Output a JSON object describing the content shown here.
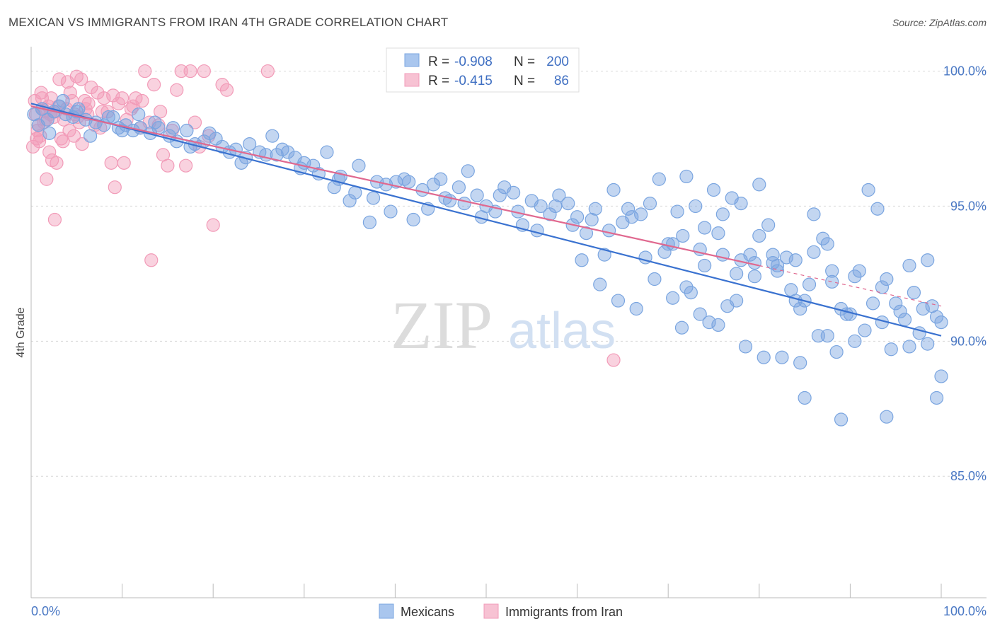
{
  "header": {
    "title": "MEXICAN VS IMMIGRANTS FROM IRAN 4TH GRADE CORRELATION CHART",
    "source": "Source: ZipAtlas.com"
  },
  "watermark": {
    "zip": "ZIP",
    "atlas": "atlas"
  },
  "legend": {
    "rows": [
      {
        "r_label": "R =",
        "r_value": "-0.908",
        "n_label": "N =",
        "n_value": "200",
        "color": "#a9c6ee"
      },
      {
        "r_label": "R =",
        "r_value": "-0.415",
        "n_label": "N =",
        "n_value": "86",
        "color": "#f5b3c8"
      }
    ]
  },
  "bottom_legend": {
    "items": [
      "Mexicans",
      "Immigrants from Iran"
    ]
  },
  "chart_data": {
    "type": "scatter",
    "xlabel": "",
    "ylabel": "4th Grade",
    "xlim": [
      0,
      100
    ],
    "ylim": [
      80.5,
      100.8
    ],
    "x_tick_labels": [
      "0.0%",
      "100.0%"
    ],
    "y_ticks": [
      85,
      90,
      95,
      100
    ],
    "y_tick_labels": [
      "85.0%",
      "90.0%",
      "95.0%",
      "100.0%"
    ],
    "grid": true,
    "colors": {
      "blue": "#7aa5e0",
      "blue_line": "#3a72d0",
      "pink": "#f29bb8",
      "pink_line": "#e0688f"
    },
    "series": [
      {
        "name": "Mexicans",
        "trend": {
          "x0": 0,
          "y0": 98.8,
          "x1": 100,
          "y1": 90.2
        },
        "points": [
          [
            0.3,
            98.4
          ],
          [
            1.2,
            98.6
          ],
          [
            1.8,
            98.2
          ],
          [
            2.5,
            98.5
          ],
          [
            3.1,
            98.7
          ],
          [
            3.8,
            98.4
          ],
          [
            4.6,
            98.3
          ],
          [
            5.2,
            98.6
          ],
          [
            6.0,
            98.2
          ],
          [
            7.1,
            98.1
          ],
          [
            8.0,
            98.0
          ],
          [
            9.0,
            98.3
          ],
          [
            9.6,
            97.9
          ],
          [
            10.4,
            98.0
          ],
          [
            11.2,
            97.8
          ],
          [
            12.0,
            97.9
          ],
          [
            13.1,
            97.7
          ],
          [
            14.0,
            97.9
          ],
          [
            15.2,
            97.6
          ],
          [
            16.0,
            97.4
          ],
          [
            17.1,
            97.8
          ],
          [
            18.0,
            97.3
          ],
          [
            19.0,
            97.4
          ],
          [
            20.3,
            97.5
          ],
          [
            21.0,
            97.2
          ],
          [
            22.5,
            97.1
          ],
          [
            23.1,
            96.6
          ],
          [
            24.0,
            97.3
          ],
          [
            25.1,
            97.0
          ],
          [
            26.5,
            97.6
          ],
          [
            27.0,
            96.9
          ],
          [
            28.2,
            97.0
          ],
          [
            29.0,
            96.8
          ],
          [
            30.0,
            96.6
          ],
          [
            31.0,
            96.5
          ],
          [
            32.5,
            97.0
          ],
          [
            33.3,
            95.7
          ],
          [
            34.0,
            96.1
          ],
          [
            35.0,
            95.2
          ],
          [
            36.0,
            96.5
          ],
          [
            37.2,
            94.4
          ],
          [
            38.0,
            95.9
          ],
          [
            39.0,
            95.8
          ],
          [
            40.1,
            95.9
          ],
          [
            41.0,
            96.0
          ],
          [
            42.0,
            94.5
          ],
          [
            43.0,
            95.6
          ],
          [
            44.2,
            95.8
          ],
          [
            45.0,
            96.0
          ],
          [
            46.0,
            95.2
          ],
          [
            47.0,
            95.7
          ],
          [
            48.0,
            96.3
          ],
          [
            49.0,
            95.4
          ],
          [
            50.0,
            95.0
          ],
          [
            51.0,
            94.8
          ],
          [
            52.0,
            95.7
          ],
          [
            53.0,
            95.5
          ],
          [
            54.0,
            94.3
          ],
          [
            55.0,
            95.2
          ],
          [
            56.0,
            95.0
          ],
          [
            57.0,
            94.7
          ],
          [
            58.0,
            95.4
          ],
          [
            59.0,
            95.1
          ],
          [
            60.0,
            94.6
          ],
          [
            61.0,
            94.0
          ],
          [
            62.0,
            94.9
          ],
          [
            63.0,
            93.2
          ],
          [
            64.0,
            95.6
          ],
          [
            65.0,
            94.4
          ],
          [
            66.0,
            94.6
          ],
          [
            67.0,
            94.7
          ],
          [
            68.0,
            95.1
          ],
          [
            69.0,
            96.0
          ],
          [
            70.0,
            93.6
          ],
          [
            71.0,
            94.8
          ],
          [
            72.0,
            96.1
          ],
          [
            73.0,
            95.0
          ],
          [
            74.0,
            92.8
          ],
          [
            75.0,
            95.6
          ],
          [
            76.0,
            93.2
          ],
          [
            77.0,
            95.3
          ],
          [
            78.0,
            93.0
          ],
          [
            79.0,
            93.2
          ],
          [
            80.0,
            93.9
          ],
          [
            81.0,
            94.3
          ],
          [
            82.0,
            92.8
          ],
          [
            83.0,
            93.1
          ],
          [
            84.0,
            93.0
          ],
          [
            85.0,
            91.5
          ],
          [
            86.0,
            93.3
          ],
          [
            87.0,
            93.8
          ],
          [
            88.0,
            92.2
          ],
          [
            89.0,
            91.2
          ],
          [
            90.0,
            91.0
          ],
          [
            91.0,
            92.6
          ],
          [
            92.0,
            95.6
          ],
          [
            93.0,
            94.9
          ],
          [
            94.0,
            92.3
          ],
          [
            95.0,
            91.4
          ],
          [
            96.0,
            90.8
          ],
          [
            97.0,
            91.8
          ],
          [
            98.0,
            91.2
          ],
          [
            99.0,
            91.3
          ],
          [
            100.0,
            90.7
          ],
          [
            0.8,
            98.0
          ],
          [
            2.0,
            97.7
          ],
          [
            3.5,
            98.9
          ],
          [
            5.0,
            98.5
          ],
          [
            6.5,
            97.6
          ],
          [
            8.5,
            98.3
          ],
          [
            10.0,
            97.8
          ],
          [
            11.8,
            98.4
          ],
          [
            13.6,
            98.1
          ],
          [
            15.6,
            97.9
          ],
          [
            17.5,
            97.2
          ],
          [
            19.6,
            97.7
          ],
          [
            21.8,
            97.0
          ],
          [
            23.6,
            96.8
          ],
          [
            25.8,
            96.9
          ],
          [
            27.6,
            97.1
          ],
          [
            29.6,
            96.4
          ],
          [
            31.6,
            96.2
          ],
          [
            33.8,
            96.0
          ],
          [
            35.6,
            95.5
          ],
          [
            37.6,
            95.3
          ],
          [
            39.5,
            94.8
          ],
          [
            41.5,
            95.9
          ],
          [
            43.6,
            94.9
          ],
          [
            45.5,
            95.3
          ],
          [
            47.6,
            95.1
          ],
          [
            49.5,
            94.6
          ],
          [
            51.5,
            95.4
          ],
          [
            53.5,
            94.8
          ],
          [
            55.6,
            94.1
          ],
          [
            57.6,
            95.0
          ],
          [
            59.5,
            94.3
          ],
          [
            61.6,
            94.5
          ],
          [
            63.5,
            94.1
          ],
          [
            65.6,
            94.9
          ],
          [
            67.5,
            93.1
          ],
          [
            69.6,
            93.3
          ],
          [
            71.6,
            93.9
          ],
          [
            73.5,
            93.4
          ],
          [
            75.5,
            94.0
          ],
          [
            77.5,
            92.5
          ],
          [
            79.5,
            92.9
          ],
          [
            81.5,
            93.2
          ],
          [
            83.5,
            91.9
          ],
          [
            85.5,
            92.1
          ],
          [
            87.5,
            93.6
          ],
          [
            89.6,
            91.0
          ],
          [
            91.6,
            90.4
          ],
          [
            93.5,
            90.7
          ],
          [
            95.5,
            91.1
          ],
          [
            97.6,
            90.3
          ],
          [
            99.5,
            90.9
          ],
          [
            60.5,
            93.0
          ],
          [
            62.5,
            92.1
          ],
          [
            64.5,
            91.5
          ],
          [
            66.5,
            91.2
          ],
          [
            68.5,
            92.3
          ],
          [
            70.5,
            91.6
          ],
          [
            72.5,
            91.8
          ],
          [
            74.5,
            90.7
          ],
          [
            76.5,
            91.3
          ],
          [
            78.5,
            89.8
          ],
          [
            80.5,
            89.4
          ],
          [
            82.5,
            89.4
          ],
          [
            84.5,
            89.2
          ],
          [
            86.5,
            90.2
          ],
          [
            88.5,
            89.6
          ],
          [
            90.5,
            90.0
          ],
          [
            92.5,
            91.4
          ],
          [
            94.5,
            89.7
          ],
          [
            96.5,
            89.8
          ],
          [
            98.5,
            89.9
          ],
          [
            100.0,
            88.7
          ],
          [
            85.0,
            87.9
          ],
          [
            89.0,
            87.1
          ],
          [
            94.0,
            87.2
          ],
          [
            99.5,
            87.9
          ],
          [
            71.5,
            90.5
          ],
          [
            73.5,
            91.0
          ],
          [
            75.5,
            90.6
          ],
          [
            77.5,
            91.5
          ],
          [
            79.5,
            92.4
          ],
          [
            81.5,
            92.9
          ],
          [
            84.5,
            91.2
          ],
          [
            87.5,
            90.2
          ],
          [
            90.5,
            92.4
          ],
          [
            93.5,
            92.0
          ],
          [
            96.5,
            92.8
          ],
          [
            98.5,
            93.0
          ],
          [
            70.5,
            93.6
          ],
          [
            72.0,
            92.0
          ],
          [
            74.0,
            94.2
          ],
          [
            76.0,
            94.7
          ],
          [
            78.0,
            95.1
          ],
          [
            80.0,
            95.8
          ],
          [
            82.0,
            92.6
          ],
          [
            84.0,
            91.5
          ],
          [
            86.0,
            94.7
          ],
          [
            88.0,
            92.6
          ]
        ]
      },
      {
        "name": "Immigrants from Iran",
        "trend": {
          "x0": 0,
          "y0": 98.7,
          "x1": 80,
          "y1": 92.8,
          "dash_to_x": 100,
          "dash_to_y": 91.3
        },
        "points": [
          [
            0.2,
            97.2
          ],
          [
            0.5,
            98.4
          ],
          [
            0.8,
            98.0
          ],
          [
            1.0,
            97.6
          ],
          [
            1.3,
            98.6
          ],
          [
            1.6,
            98.2
          ],
          [
            2.0,
            97.0
          ],
          [
            2.2,
            99.0
          ],
          [
            2.5,
            98.3
          ],
          [
            2.8,
            96.6
          ],
          [
            3.0,
            98.7
          ],
          [
            3.3,
            97.5
          ],
          [
            3.6,
            98.2
          ],
          [
            4.0,
            99.6
          ],
          [
            4.2,
            97.8
          ],
          [
            4.5,
            98.9
          ],
          [
            4.8,
            98.4
          ],
          [
            5.0,
            99.8
          ],
          [
            5.3,
            98.1
          ],
          [
            5.6,
            97.3
          ],
          [
            6.0,
            98.6
          ],
          [
            6.3,
            98.8
          ],
          [
            6.6,
            99.4
          ],
          [
            7.0,
            98.0
          ],
          [
            7.3,
            99.2
          ],
          [
            7.6,
            97.9
          ],
          [
            8.0,
            99.0
          ],
          [
            8.4,
            98.5
          ],
          [
            8.8,
            96.6
          ],
          [
            9.2,
            95.7
          ],
          [
            9.6,
            98.8
          ],
          [
            10.0,
            99.0
          ],
          [
            10.5,
            98.2
          ],
          [
            11.0,
            98.6
          ],
          [
            11.5,
            99.0
          ],
          [
            12.0,
            97.9
          ],
          [
            12.5,
            100.0
          ],
          [
            13.0,
            98.1
          ],
          [
            13.5,
            99.5
          ],
          [
            14.0,
            98.0
          ],
          [
            14.5,
            96.9
          ],
          [
            15.0,
            96.5
          ],
          [
            15.5,
            97.8
          ],
          [
            16.0,
            99.3
          ],
          [
            16.5,
            100.0
          ],
          [
            17.0,
            96.5
          ],
          [
            17.5,
            100.0
          ],
          [
            18.0,
            98.1
          ],
          [
            18.5,
            97.2
          ],
          [
            19.0,
            100.0
          ],
          [
            19.5,
            97.6
          ],
          [
            20.0,
            94.3
          ],
          [
            21.0,
            99.5
          ],
          [
            21.5,
            99.3
          ],
          [
            0.4,
            98.9
          ],
          [
            0.7,
            97.8
          ],
          [
            1.1,
            99.2
          ],
          [
            1.5,
            98.5
          ],
          [
            1.9,
            98.7
          ],
          [
            2.3,
            96.7
          ],
          [
            2.7,
            98.5
          ],
          [
            3.1,
            99.7
          ],
          [
            3.5,
            97.4
          ],
          [
            3.9,
            98.6
          ],
          [
            4.3,
            99.2
          ],
          [
            4.7,
            97.6
          ],
          [
            5.1,
            98.3
          ],
          [
            5.5,
            99.7
          ],
          [
            5.9,
            98.9
          ],
          [
            6.2,
            98.4
          ],
          [
            7.8,
            98.5
          ],
          [
            9.0,
            99.1
          ],
          [
            10.2,
            96.6
          ],
          [
            11.2,
            98.7
          ],
          [
            12.2,
            98.9
          ],
          [
            13.2,
            93.0
          ],
          [
            14.2,
            98.5
          ],
          [
            2.6,
            94.5
          ],
          [
            26.0,
            100.0
          ],
          [
            64.0,
            89.3
          ],
          [
            0.9,
            97.4
          ],
          [
            1.4,
            98.1
          ],
          [
            1.7,
            96.0
          ],
          [
            2.1,
            98.4
          ],
          [
            0.6,
            97.5
          ],
          [
            1.2,
            99.0
          ]
        ]
      }
    ]
  }
}
